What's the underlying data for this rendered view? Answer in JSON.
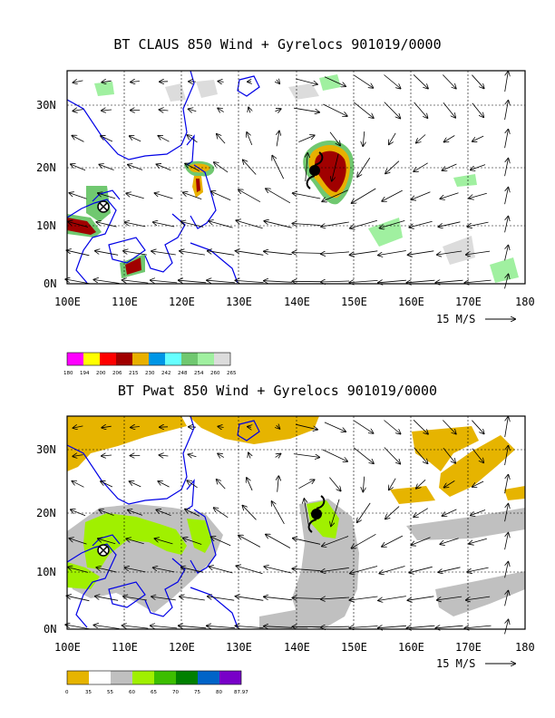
{
  "panel1": {
    "title": "BT CLAUS 850 Wind + Gyrelocs 901019/0000",
    "lat_labels": [
      "30N",
      "20N",
      "10N",
      "0N"
    ],
    "lon_labels": [
      "100E",
      "110E",
      "120E",
      "130E",
      "140E",
      "150E",
      "160E",
      "170E",
      "180"
    ],
    "vector_scale": "15 M/S",
    "colorbar": {
      "labels": [
        "180",
        "194",
        "200",
        "206",
        "215",
        "230",
        "242",
        "248",
        "254",
        "260",
        "265"
      ],
      "colors": [
        "#ff00ff",
        "#ffff00",
        "#ff0000",
        "#a00000",
        "#e8b000",
        "#0096e6",
        "#66ffff",
        "#70c870",
        "#a0f0a0",
        "#dcdcdc"
      ]
    }
  },
  "panel2": {
    "title": "BT Pwat 850 Wind + Gyrelocs 901019/0000",
    "lat_labels": [
      "30N",
      "20N",
      "10N",
      "0N"
    ],
    "lon_labels": [
      "100E",
      "110E",
      "120E",
      "130E",
      "140E",
      "150E",
      "160E",
      "170E",
      "180"
    ],
    "vector_scale": "15 M/S",
    "colorbar": {
      "labels": [
        "0",
        "35",
        "55",
        "60",
        "65",
        "70",
        "75",
        "80",
        "87.97"
      ],
      "colors": [
        "#e6b400",
        "#ffffff",
        "#c0c0c0",
        "#a0f000",
        "#3cbe00",
        "#008000",
        "#0064c8",
        "#7800c8"
      ]
    }
  }
}
